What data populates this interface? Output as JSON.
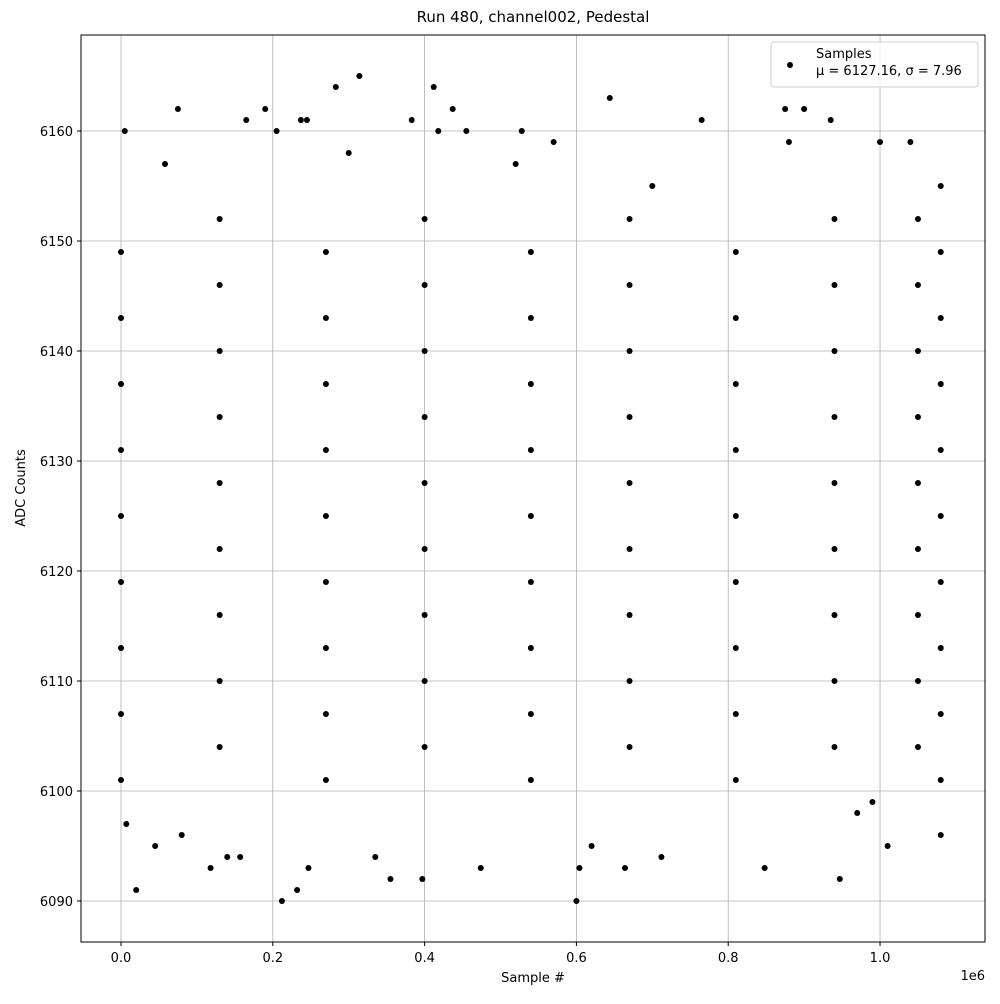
{
  "chart_data": {
    "type": "scatter",
    "title": "Run 480, channel002, Pedestal",
    "x_label": "Sample #",
    "y_label": "ADC Counts",
    "x_offset_label": "1e6",
    "legend_text": "μ = 6127.16, σ = 7.96",
    "legend_position": "upper right",
    "grid": true,
    "xlim": [
      -52700,
      1138300
    ],
    "ylim": [
      6086.27,
      6168.73
    ],
    "xticks": [
      {
        "value": 0,
        "label": "0.0"
      },
      {
        "value": 200000,
        "label": "0.2"
      },
      {
        "value": 400000,
        "label": "0.4"
      },
      {
        "value": 600000,
        "label": "0.6"
      },
      {
        "value": 800000,
        "label": "0.8"
      },
      {
        "value": 1000000,
        "label": "1.0"
      }
    ],
    "yticks": [
      6090,
      6100,
      6110,
      6120,
      6130,
      6140,
      6150,
      6160
    ],
    "x": [
      5000,
      20000,
      75000,
      190000,
      165000,
      205000,
      212000,
      232000,
      237000,
      245000,
      283000,
      314000,
      355000,
      383000,
      397000,
      412000,
      418000,
      437000,
      455000,
      528000,
      570000,
      600000,
      644000,
      765000,
      875000,
      900000,
      935000,
      947000,
      880000,
      1000000,
      118000,
      140000,
      157000,
      247000,
      335000,
      474000,
      712000,
      848000,
      664000,
      1010000,
      7000,
      45000,
      1080000,
      604000,
      620000,
      970000,
      990000,
      80000,
      58000,
      300000,
      520000,
      700000,
      1040000,
      1080000,
      0,
      270000,
      540000,
      810000,
      1080000,
      130000,
      400000,
      670000,
      940000,
      1050000,
      0,
      270000,
      540000,
      810000,
      1080000,
      130000,
      400000,
      670000,
      940000,
      1050000,
      0,
      270000,
      540000,
      810000,
      1080000,
      130000,
      400000,
      670000,
      940000,
      1050000,
      0,
      270000,
      540000,
      810000,
      1080000,
      130000,
      400000,
      670000,
      940000,
      1050000,
      0,
      270000,
      540000,
      810000,
      1080000,
      130000,
      400000,
      670000,
      940000,
      1050000,
      0,
      270000,
      540000,
      810000,
      1080000,
      130000,
      400000,
      670000,
      940000,
      1050000,
      0,
      270000,
      540000,
      810000,
      1080000,
      130000,
      400000,
      670000,
      940000,
      1050000,
      0,
      270000,
      540000,
      810000,
      1080000,
      130000,
      400000,
      670000,
      940000,
      1050000,
      0,
      270000,
      540000,
      810000,
      1080000,
      130000,
      400000,
      670000,
      940000,
      1050000
    ],
    "series": [
      {
        "name": "Samples",
        "color": "#000000",
        "values": [
          6160,
          6091,
          6162,
          6162,
          6161,
          6160,
          6090,
          6091,
          6161,
          6161,
          6164,
          6165,
          6092,
          6161,
          6092,
          6164,
          6160,
          6162,
          6160,
          6160,
          6159,
          6090,
          6163,
          6161,
          6162,
          6162,
          6161,
          6092,
          6159,
          6159,
          6093,
          6094,
          6094,
          6093,
          6094,
          6093,
          6094,
          6093,
          6093,
          6095,
          6097,
          6095,
          6096,
          6093,
          6095,
          6098,
          6099,
          6096,
          6157,
          6158,
          6157,
          6155,
          6159,
          6155,
          6101,
          6101,
          6101,
          6101,
          6101,
          6104,
          6104,
          6104,
          6104,
          6104,
          6107,
          6107,
          6107,
          6107,
          6107,
          6110,
          6110,
          6110,
          6110,
          6110,
          6113,
          6113,
          6113,
          6113,
          6113,
          6116,
          6116,
          6116,
          6116,
          6116,
          6119,
          6119,
          6119,
          6119,
          6119,
          6122,
          6122,
          6122,
          6122,
          6122,
          6125,
          6125,
          6125,
          6125,
          6125,
          6128,
          6128,
          6128,
          6128,
          6128,
          6131,
          6131,
          6131,
          6131,
          6131,
          6134,
          6134,
          6134,
          6134,
          6134,
          6137,
          6137,
          6137,
          6137,
          6137,
          6140,
          6140,
          6140,
          6140,
          6140,
          6143,
          6143,
          6143,
          6143,
          6143,
          6146,
          6146,
          6146,
          6146,
          6146,
          6149,
          6149,
          6149,
          6149,
          6149,
          6152,
          6152,
          6152,
          6152,
          6152
        ]
      }
    ]
  }
}
